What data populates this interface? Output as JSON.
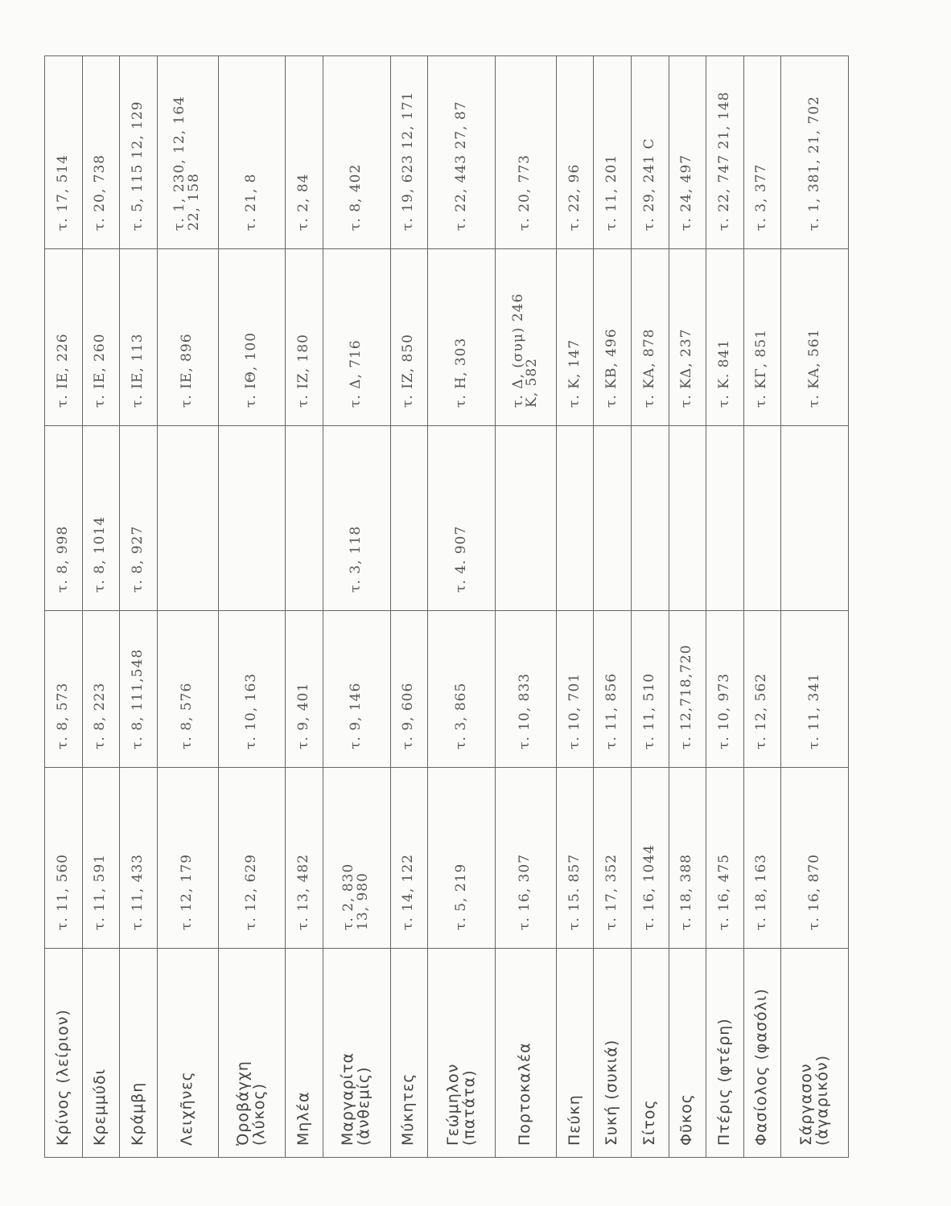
{
  "table": {
    "rows": [
      [
        "Κρίνος (λείριον)",
        "τ. 11, 560",
        "τ. 8, 573",
        "τ. 8, 998",
        "τ. ΙΕ, 226",
        "τ. 17, 514"
      ],
      [
        "Κρεμμύδι",
        "τ. 11, 591",
        "τ. 8, 223",
        "τ. 8, 1014",
        "τ. ΙΕ, 260",
        "τ. 20, 738"
      ],
      [
        "Κράμβη",
        "τ. 11, 433",
        "τ. 8, 111,548",
        "τ. 8, 927",
        "τ. ΙΕ, 113",
        "τ. 5, 115 12, 129"
      ],
      [
        "Λειχῆνες",
        "τ. 12, 179",
        "τ. 8, 576",
        "",
        "τ. ΙΕ, 896",
        "τ. 1, 230, 12, 164\n22, 158"
      ],
      [
        "Ὀροβάγχη\n(λύκος)",
        "τ. 12, 629",
        "τ. 10, 163",
        "",
        "τ. ΙΘ, 100",
        "τ. 21, 8"
      ],
      [
        "Μηλέα",
        "τ. 13, 482",
        "τ. 9, 401",
        "",
        "τ. ΙΖ, 180",
        "τ. 2, 84"
      ],
      [
        "Μαργαρίτα\n(ἀνθεμίς)",
        "τ. 2, 830\n13, 980",
        "τ. 9, 146",
        "τ. 3, 118",
        "τ. Δ, 716",
        "τ. 8, 402"
      ],
      [
        "Μύκητες",
        "τ. 14, 122",
        "τ. 9, 606",
        "",
        "τ. ΙΖ, 850",
        "τ. 19, 623 12, 171"
      ],
      [
        "Γεώμηλον\n(πατάτα)",
        "τ. 5, 219",
        "τ. 3, 865",
        "τ. 4. 907",
        "τ. Η, 303",
        "τ. 22, 443 27, 87"
      ],
      [
        "Πορτοκαλέα",
        "τ. 16, 307",
        "τ. 10, 833",
        "",
        "τ. Δ, (συμ) 246\nΚ, 582",
        "τ. 20, 773"
      ],
      [
        "Πεύκη",
        "τ. 15. 857",
        "τ. 10, 701",
        "",
        "τ. Κ, 147",
        "τ. 22, 96"
      ],
      [
        "Συκή (συκιά)",
        "τ. 17, 352",
        "τ. 11, 856",
        "",
        "τ. ΚΒ, 496",
        "τ. 11, 201"
      ],
      [
        "Σίτος",
        "τ. 16, 1044",
        "τ. 11, 510",
        "",
        "τ. ΚΑ, 878",
        "τ. 29, 241 C"
      ],
      [
        "Φῦκος",
        "τ. 18, 388",
        "τ. 12,718,720",
        "",
        "τ. ΚΔ, 237",
        "τ. 24, 497"
      ],
      [
        "Πτέρις (φτέρη)",
        "τ. 16, 475",
        "τ. 10, 973",
        "",
        "τ. Κ. 841",
        "τ. 22, 747 21, 148"
      ],
      [
        "Φασίολος (φασόλι)",
        "τ. 18, 163",
        "τ. 12, 562",
        "",
        "τ. ΚΓ, 851",
        "τ. 3, 377"
      ],
      [
        "Σάργασον\n(ἀγαρικόν)",
        "τ. 16, 870",
        "τ. 11, 341",
        "",
        "τ. ΚΑ, 561",
        "τ. 1, 381, 21, 702"
      ]
    ]
  }
}
